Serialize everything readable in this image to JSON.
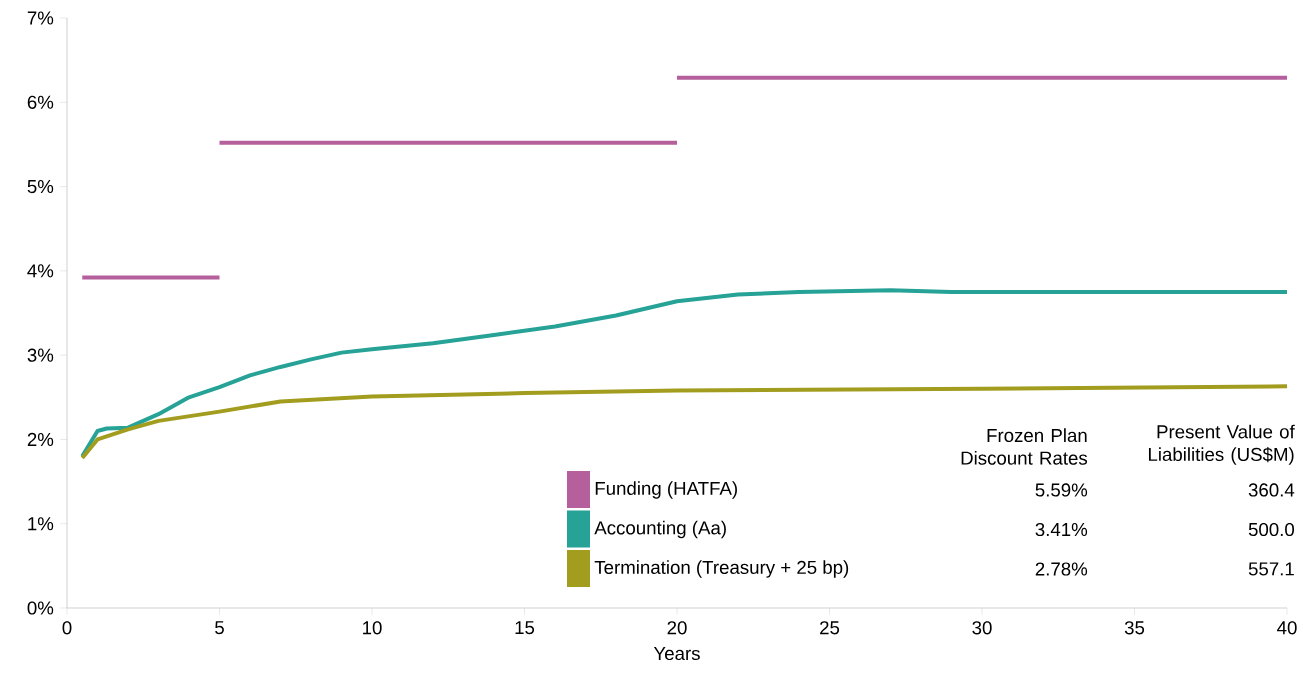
{
  "chart_data": {
    "type": "line",
    "xlabel": "Years",
    "xlim": [
      0,
      40
    ],
    "ylim": [
      0,
      7
    ],
    "xticks": [
      0,
      5,
      10,
      15,
      20,
      25,
      30,
      35,
      40
    ],
    "yticks": [
      {
        "value": 0,
        "label": "0%"
      },
      {
        "value": 1,
        "label": "1%"
      },
      {
        "value": 2,
        "label": "2%"
      },
      {
        "value": 3,
        "label": "3%"
      },
      {
        "value": 4,
        "label": "4%"
      },
      {
        "value": 5,
        "label": "5%"
      },
      {
        "value": 6,
        "label": "6%"
      },
      {
        "value": 7,
        "label": "7%"
      }
    ],
    "legend": "bottom right",
    "series": [
      {
        "name": "Funding (HATFA)",
        "color": "#b5609c",
        "x": [
          0.5,
          5,
          null,
          5,
          20,
          null,
          20,
          40
        ],
        "values": [
          3.92,
          3.92,
          null,
          5.52,
          5.52,
          null,
          6.29,
          6.29
        ]
      },
      {
        "name": "Accounting (Aa)",
        "color": "#26a297",
        "x": [
          0.5,
          1,
          1.3,
          2,
          3,
          4,
          5,
          6,
          7,
          8,
          9,
          10,
          12,
          14,
          16,
          18,
          20,
          22,
          24,
          27,
          29,
          40
        ],
        "values": [
          1.8,
          2.1,
          2.13,
          2.14,
          2.3,
          2.5,
          2.62,
          2.76,
          2.86,
          2.95,
          3.03,
          3.07,
          3.14,
          3.24,
          3.34,
          3.47,
          3.64,
          3.72,
          3.75,
          3.77,
          3.75,
          3.75
        ]
      },
      {
        "name": "Termination (Treasury + 25 bp)",
        "color": "#a39d1f",
        "x": [
          0.5,
          1,
          2,
          3,
          5,
          7,
          10,
          15,
          20,
          30,
          40
        ],
        "values": [
          1.78,
          2.0,
          2.12,
          2.22,
          2.33,
          2.45,
          2.51,
          2.55,
          2.58,
          2.6,
          2.63
        ]
      }
    ],
    "annotations": [
      "Frozen Plan Discount Rates",
      "Present Value of Liabilities (US$M)",
      "5.59%",
      "360.4",
      "3.41%",
      "500.0",
      "2.78%",
      "557.1"
    ]
  }
}
